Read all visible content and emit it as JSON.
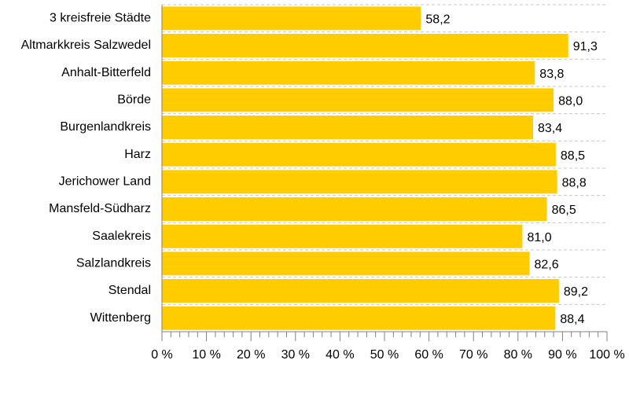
{
  "chart_data": {
    "type": "bar",
    "orientation": "horizontal",
    "categories": [
      "3 kreisfreie Städte",
      "Altmarkkreis Salzwedel",
      "Anhalt-Bitterfeld",
      "Börde",
      "Burgenlandkreis",
      "Harz",
      "Jerichower Land",
      "Mansfeld-Südharz",
      "Saalekreis",
      "Salzlandkreis",
      "Stendal",
      "Wittenberg"
    ],
    "values": [
      58.2,
      91.3,
      83.8,
      88.0,
      83.4,
      88.5,
      88.8,
      86.5,
      81.0,
      82.6,
      89.2,
      88.4
    ],
    "value_labels": [
      "58,2",
      "91,3",
      "83,8",
      "88,0",
      "83,4",
      "88,5",
      "88,8",
      "86,5",
      "81,0",
      "82,6",
      "89,2",
      "88,4"
    ],
    "xlim": [
      0,
      100
    ],
    "x_ticks": [
      0,
      10,
      20,
      30,
      40,
      50,
      60,
      70,
      80,
      90,
      100
    ],
    "x_tick_labels": [
      "0 %",
      "10 %",
      "20 %",
      "30 %",
      "40 %",
      "50 %",
      "60 %",
      "70 %",
      "80 %",
      "90 %",
      "100 %"
    ],
    "title": "",
    "xlabel": "",
    "ylabel": "",
    "grid": "horizontal-dashed",
    "bar_color": "#FFCC00"
  }
}
